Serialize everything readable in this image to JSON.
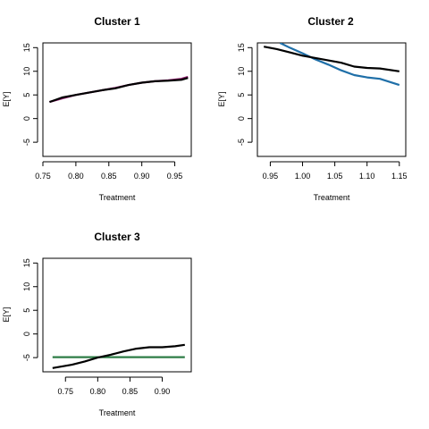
{
  "chart_data": [
    {
      "type": "line",
      "title": "Cluster 1",
      "xlabel": "Treatment",
      "ylabel": "E[Y]",
      "xlim": [
        0.75,
        0.975
      ],
      "ylim": [
        -8,
        16
      ],
      "xticks": [
        "0.75",
        "0.80",
        "0.85",
        "0.90",
        "0.95"
      ],
      "yticks": [
        "-5",
        "0",
        "5",
        "10",
        "15"
      ],
      "series": [
        {
          "color": "#8b1a6b",
          "x": [
            0.76,
            0.78,
            0.8,
            0.82,
            0.84,
            0.86,
            0.88,
            0.9,
            0.92,
            0.94,
            0.96,
            0.97
          ],
          "y": [
            3.5,
            4.3,
            5.0,
            5.5,
            6.0,
            6.5,
            7.1,
            7.6,
            7.9,
            8.1,
            8.4,
            8.8
          ]
        },
        {
          "color": "#000000",
          "x": [
            0.76,
            0.78,
            0.8,
            0.82,
            0.84,
            0.86,
            0.88,
            0.9,
            0.92,
            0.94,
            0.96,
            0.97
          ],
          "y": [
            3.5,
            4.5,
            5.0,
            5.5,
            6.0,
            6.4,
            7.1,
            7.6,
            7.9,
            8.0,
            8.2,
            8.6
          ]
        }
      ]
    },
    {
      "type": "line",
      "title": "Cluster 2",
      "xlabel": "Treatment",
      "ylabel": "E[Y]",
      "xlim": [
        0.93,
        1.16
      ],
      "ylim": [
        -8,
        16
      ],
      "xticks": [
        "0.95",
        "1.00",
        "1.05",
        "1.10",
        "1.15"
      ],
      "yticks": [
        "-5",
        "0",
        "5",
        "10",
        "15"
      ],
      "series": [
        {
          "color": "#1f6fa8",
          "x": [
            0.965,
            0.98,
            1.0,
            1.02,
            1.04,
            1.06,
            1.08,
            1.1,
            1.12,
            1.15
          ],
          "y": [
            16.0,
            15.0,
            13.8,
            12.5,
            11.4,
            10.2,
            9.2,
            8.7,
            8.4,
            7.1
          ]
        },
        {
          "color": "#000000",
          "x": [
            0.94,
            0.96,
            0.98,
            1.0,
            1.02,
            1.04,
            1.06,
            1.08,
            1.1,
            1.12,
            1.15
          ],
          "y": [
            15.2,
            14.7,
            14.0,
            13.3,
            12.8,
            12.3,
            11.8,
            11.0,
            10.7,
            10.6,
            10.0
          ]
        }
      ]
    },
    {
      "type": "line",
      "title": "Cluster 3",
      "xlabel": "Treatment",
      "ylabel": "E[Y]",
      "xlim": [
        0.715,
        0.945
      ],
      "ylim": [
        -8,
        16
      ],
      "xticks": [
        "0.75",
        "0.80",
        "0.85",
        "0.90"
      ],
      "yticks": [
        "-5",
        "0",
        "5",
        "10",
        "15"
      ],
      "series": [
        {
          "color": "#2e7d46",
          "x": [
            0.73,
            0.935
          ],
          "y": [
            -4.9,
            -4.9
          ]
        },
        {
          "color": "#000000",
          "x": [
            0.73,
            0.76,
            0.78,
            0.8,
            0.82,
            0.84,
            0.86,
            0.88,
            0.9,
            0.92,
            0.935
          ],
          "y": [
            -7.2,
            -6.5,
            -5.8,
            -5.0,
            -4.4,
            -3.7,
            -3.1,
            -2.8,
            -2.8,
            -2.6,
            -2.3
          ]
        }
      ]
    }
  ]
}
